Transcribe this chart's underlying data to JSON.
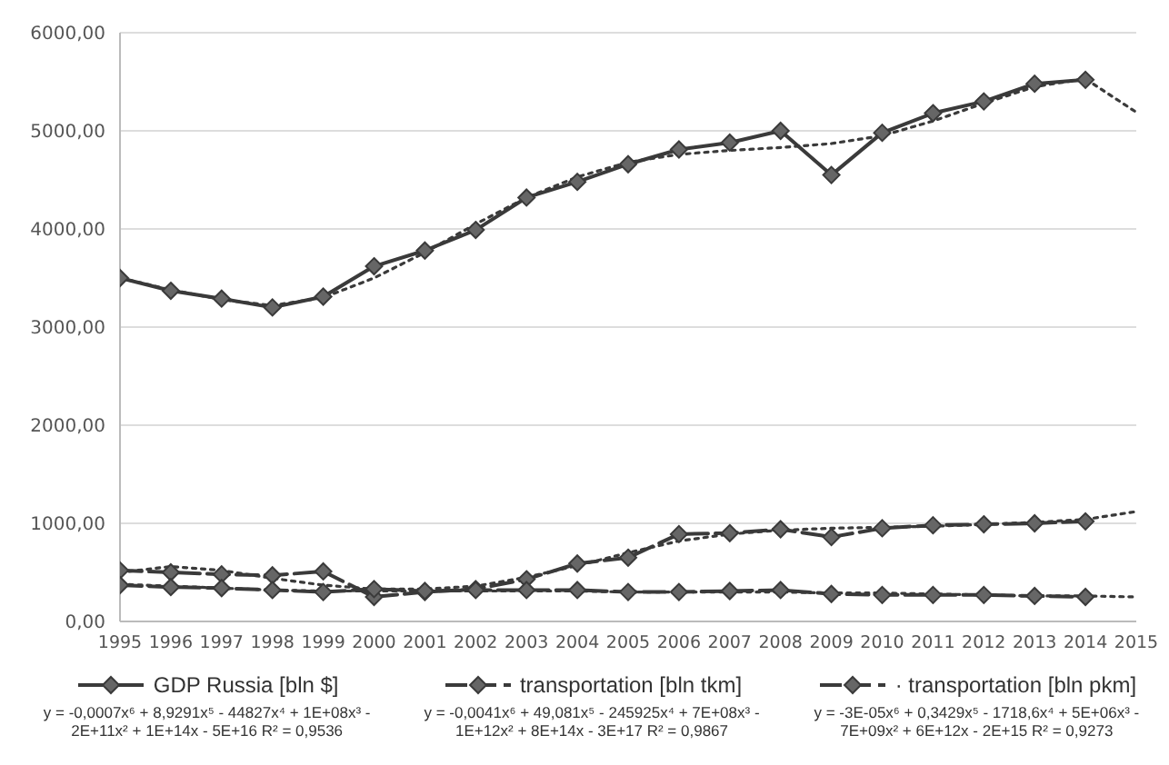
{
  "chart_data": {
    "type": "line",
    "x": [
      1995,
      1996,
      1997,
      1998,
      1999,
      2000,
      2001,
      2002,
      2003,
      2004,
      2005,
      2006,
      2007,
      2008,
      2009,
      2010,
      2011,
      2012,
      2013,
      2014
    ],
    "series": [
      {
        "name": "GDP Russia [bln $]",
        "color": "#3a3a3a",
        "line_style": "solid",
        "values": [
          3500,
          3370,
          3290,
          3200,
          3310,
          3620,
          3780,
          3990,
          4320,
          4480,
          4660,
          4810,
          4880,
          5000,
          4550,
          4980,
          5180,
          5300,
          5480,
          5520
        ]
      },
      {
        "name": "transportation [bln tkm]",
        "color": "#3a3a3a",
        "line_style": "dashed",
        "values": [
          520,
          500,
          480,
          470,
          510,
          250,
          300,
          330,
          430,
          590,
          650,
          890,
          900,
          940,
          860,
          950,
          980,
          990,
          1000,
          1020
        ]
      },
      {
        "name": "· transportation [bln pkm]",
        "color": "#3a3a3a",
        "line_style": "dashed",
        "values": [
          370,
          350,
          340,
          320,
          300,
          330,
          310,
          320,
          320,
          320,
          300,
          300,
          310,
          320,
          280,
          270,
          270,
          270,
          260,
          250
        ]
      },
      {
        "type": "line",
        "color": "#3a3a3a",
        "line_style": "dotted",
        "marker": "none",
        "x": [
          1995,
          1996,
          1997,
          1998,
          1999,
          2000,
          2001,
          2002,
          2003,
          2004,
          2005,
          2006,
          2007,
          2008,
          2009,
          2010,
          2011,
          2012,
          2013,
          2014,
          2015
        ],
        "values": [
          3500,
          3380,
          3280,
          3220,
          3300,
          3500,
          3760,
          4050,
          4320,
          4530,
          4680,
          4760,
          4800,
          4830,
          4870,
          4950,
          5100,
          5280,
          5450,
          5530,
          5190
        ]
      },
      {
        "type": "line",
        "color": "#3a3a3a",
        "line_style": "dotted",
        "marker": "none",
        "x": [
          1995,
          1996,
          1997,
          1998,
          1999,
          2000,
          2001,
          2002,
          2003,
          2004,
          2005,
          2006,
          2007,
          2008,
          2009,
          2010,
          2011,
          2012,
          2013,
          2014,
          2015
        ],
        "values": [
          500,
          560,
          520,
          440,
          370,
          330,
          330,
          360,
          450,
          570,
          700,
          820,
          890,
          930,
          950,
          960,
          970,
          990,
          1010,
          1040,
          1120
        ]
      },
      {
        "type": "line",
        "color": "#3a3a3a",
        "line_style": "dotted",
        "marker": "none",
        "x": [
          1995,
          1996,
          1997,
          1998,
          1999,
          2000,
          2001,
          2002,
          2003,
          2004,
          2005,
          2006,
          2007,
          2008,
          2009,
          2010,
          2011,
          2012,
          2013,
          2014,
          2015
        ],
        "values": [
          380,
          360,
          340,
          320,
          310,
          310,
          310,
          310,
          310,
          310,
          300,
          300,
          300,
          300,
          290,
          290,
          280,
          270,
          260,
          260,
          250
        ]
      }
    ],
    "marker": "diamond",
    "xlim": [
      1995,
      2015
    ],
    "xticks": [
      1995,
      1996,
      1997,
      1998,
      1999,
      2000,
      2001,
      2002,
      2003,
      2004,
      2005,
      2006,
      2007,
      2008,
      2009,
      2010,
      2011,
      2012,
      2013,
      2014,
      2015
    ],
    "ylim": [
      0,
      6000
    ],
    "yticks": [
      {
        "value": 0,
        "label": "0,00"
      },
      {
        "value": 1000,
        "label": "1000,00"
      },
      {
        "value": 2000,
        "label": "2000,00"
      },
      {
        "value": 3000,
        "label": "3000,00"
      },
      {
        "value": 4000,
        "label": "4000,00"
      },
      {
        "value": 5000,
        "label": "5000,00"
      },
      {
        "value": 6000,
        "label": "6000,00"
      }
    ],
    "grid": "y",
    "legend": "bottom",
    "annotations": [
      "y = -0,0007x⁶ + 8,9291x⁵ - 44827x⁴ + 1E+08x³ - 2E+11x² + 1E+14x - 5E+16 R² = 0,9536",
      "y = -0,0041x⁶ + 49,081x⁵ - 245925x⁴ + 7E+08x³ - 1E+12x² + 8E+14x - 3E+17 R² = 0,9867",
      "y = -3E-05x⁶ + 0,3429x⁵ - 1718,6x⁴ + 5E+06x³ - 7E+09x² + 6E+12x - 2E+15 R² = 0,9273"
    ]
  }
}
